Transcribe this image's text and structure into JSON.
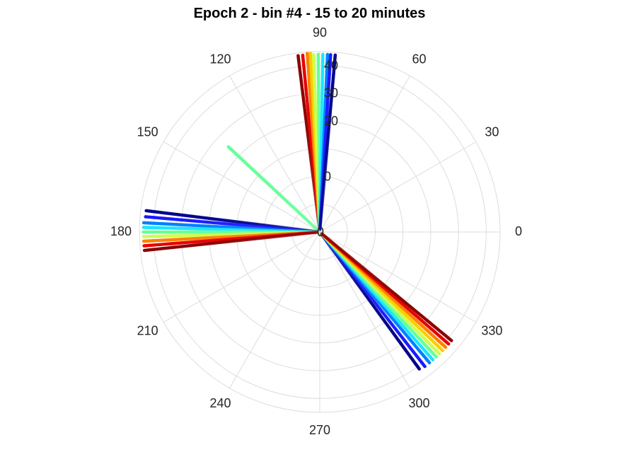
{
  "chart_data": {
    "type": "scatter",
    "projection": "polar",
    "title": "Epoch 2 - bin #4 - 15 to 20 minutes",
    "angular_axis": {
      "unit": "degrees",
      "direction": "counterclockwise",
      "zero_at": "right",
      "ticks": [
        0,
        30,
        60,
        90,
        120,
        150,
        180,
        210,
        240,
        270,
        300,
        330
      ],
      "tick_labels": [
        "0",
        "30",
        "60",
        "90",
        "120",
        "150",
        "180",
        "210",
        "240",
        "270",
        "300",
        "330"
      ]
    },
    "radial_axis": {
      "range": [
        -20,
        45
      ],
      "label_angle": 90,
      "tick_values": [
        0,
        20,
        30,
        40
      ],
      "tick_labels": [
        "0",
        "20",
        "30",
        "40"
      ],
      "inner_tick_value": -20,
      "inner_tick_label": "0",
      "grid_circles": [
        -10,
        0,
        10,
        20,
        30,
        40
      ]
    },
    "grid": true,
    "colormap": "jet",
    "series": [
      {
        "angle": 97,
        "r_start": -19,
        "r_end": 44,
        "color": "#8b0000"
      },
      {
        "angle": 95.5,
        "r_start": -19,
        "r_end": 44,
        "color": "#e60000"
      },
      {
        "angle": 94,
        "r_start": -19,
        "r_end": 44.5,
        "color": "#ff7f00"
      },
      {
        "angle": 93,
        "r_start": -19,
        "r_end": 44.5,
        "color": "#ffcc00"
      },
      {
        "angle": 92,
        "r_start": -19,
        "r_end": 44,
        "color": "#ccff4d"
      },
      {
        "angle": 90.5,
        "r_start": -19,
        "r_end": 44,
        "color": "#66ff99"
      },
      {
        "angle": 89,
        "r_start": -19,
        "r_end": 44,
        "color": "#1ae6ff"
      },
      {
        "angle": 87.5,
        "r_start": -19,
        "r_end": 44,
        "color": "#0080ff"
      },
      {
        "angle": 86.5,
        "r_start": -19,
        "r_end": 44,
        "color": "#1a1aff"
      },
      {
        "angle": 85,
        "r_start": -19,
        "r_end": 44,
        "color": "#00008b"
      },
      {
        "angle": 137,
        "r_start": -19,
        "r_end": 25,
        "color": "#66ff99"
      },
      {
        "angle": 173,
        "r_start": -19,
        "r_end": 43,
        "color": "#00008b"
      },
      {
        "angle": 175,
        "r_start": -19,
        "r_end": 43,
        "color": "#1a1aff"
      },
      {
        "angle": 177,
        "r_start": -19,
        "r_end": 43.5,
        "color": "#0080ff"
      },
      {
        "angle": 178.5,
        "r_start": -19,
        "r_end": 43.5,
        "color": "#1ae6ff"
      },
      {
        "angle": 180,
        "r_start": -19,
        "r_end": 43.5,
        "color": "#66ff99"
      },
      {
        "angle": 181.5,
        "r_start": -19,
        "r_end": 43.5,
        "color": "#ccff4d"
      },
      {
        "angle": 183,
        "r_start": -19,
        "r_end": 43.5,
        "color": "#ff7f00"
      },
      {
        "angle": 184.5,
        "r_start": -19,
        "r_end": 43.5,
        "color": "#e60000"
      },
      {
        "angle": 186,
        "r_start": -19,
        "r_end": 43.5,
        "color": "#8b0000"
      },
      {
        "angle": 306,
        "r_start": -19,
        "r_end": 41,
        "color": "#00008b"
      },
      {
        "angle": 308,
        "r_start": -19,
        "r_end": 41.5,
        "color": "#1a1aff"
      },
      {
        "angle": 310,
        "r_start": -19,
        "r_end": 41.5,
        "color": "#0080ff"
      },
      {
        "angle": 311.5,
        "r_start": -19,
        "r_end": 41.5,
        "color": "#1ae6ff"
      },
      {
        "angle": 313,
        "r_start": -19,
        "r_end": 41.5,
        "color": "#66ff99"
      },
      {
        "angle": 314.5,
        "r_start": -19,
        "r_end": 41.5,
        "color": "#ccff4d"
      },
      {
        "angle": 316,
        "r_start": -19,
        "r_end": 41.5,
        "color": "#ffcc00"
      },
      {
        "angle": 317.5,
        "r_start": -19,
        "r_end": 41.5,
        "color": "#ff7f00"
      },
      {
        "angle": 319,
        "r_start": -19,
        "r_end": 41.5,
        "color": "#e60000"
      },
      {
        "angle": 320.5,
        "r_start": -19,
        "r_end": 41.5,
        "color": "#8b0000"
      }
    ]
  }
}
